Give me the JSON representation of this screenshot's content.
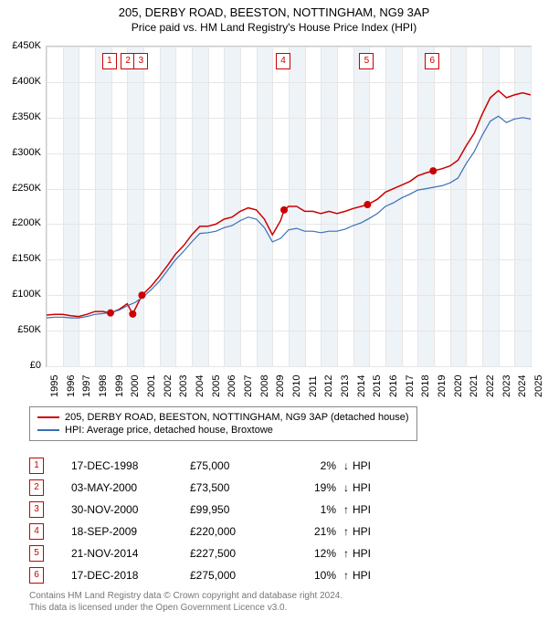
{
  "title": "205, DERBY ROAD, BEESTON, NOTTINGHAM, NG9 3AP",
  "subtitle": "Price paid vs. HM Land Registry's House Price Index (HPI)",
  "chart": {
    "type": "line",
    "x_axis": {
      "years": [
        1995,
        1996,
        1997,
        1998,
        1999,
        2000,
        2001,
        2002,
        2003,
        2004,
        2005,
        2006,
        2007,
        2008,
        2009,
        2010,
        2011,
        2012,
        2013,
        2014,
        2015,
        2016,
        2017,
        2018,
        2019,
        2020,
        2021,
        2022,
        2023,
        2024,
        2025
      ],
      "xlim": [
        1995,
        2025
      ]
    },
    "y_axis": {
      "ticks": [
        0,
        50000,
        100000,
        150000,
        200000,
        250000,
        300000,
        350000,
        400000,
        450000
      ],
      "tick_labels": [
        "£0",
        "£50K",
        "£100K",
        "£150K",
        "£200K",
        "£250K",
        "£300K",
        "£350K",
        "£400K",
        "£450K"
      ],
      "ylim": [
        0,
        450000
      ]
    },
    "grid_color": "#e6e6e6",
    "band_color": "#eef3f8",
    "border_color": "#c8c8c8",
    "background_color": "#ffffff",
    "series": [
      {
        "name": "205, DERBY ROAD, BEESTON, NOTTINGHAM, NG9 3AP (detached house)",
        "color": "#cc0000",
        "line_width": 1.5,
        "data": [
          [
            1995,
            72000
          ],
          [
            1995.5,
            73000
          ],
          [
            1996,
            73000
          ],
          [
            1996.5,
            71000
          ],
          [
            1997,
            70000
          ],
          [
            1997.5,
            73000
          ],
          [
            1998,
            77000
          ],
          [
            1998.5,
            77000
          ],
          [
            1998.96,
            75000
          ],
          [
            1999.5,
            80000
          ],
          [
            2000,
            88000
          ],
          [
            2000.34,
            73500
          ],
          [
            2000.91,
            99950
          ],
          [
            2001.5,
            113000
          ],
          [
            2002,
            127000
          ],
          [
            2002.5,
            142000
          ],
          [
            2003,
            158000
          ],
          [
            2003.5,
            170000
          ],
          [
            2004,
            185000
          ],
          [
            2004.5,
            197000
          ],
          [
            2005,
            197000
          ],
          [
            2005.5,
            200000
          ],
          [
            2006,
            207000
          ],
          [
            2006.5,
            210000
          ],
          [
            2007,
            218000
          ],
          [
            2007.5,
            223000
          ],
          [
            2008,
            220000
          ],
          [
            2008.5,
            207000
          ],
          [
            2009,
            185000
          ],
          [
            2009.5,
            205000
          ],
          [
            2009.72,
            220000
          ],
          [
            2010,
            225000
          ],
          [
            2010.5,
            225000
          ],
          [
            2011,
            218000
          ],
          [
            2011.5,
            218000
          ],
          [
            2012,
            215000
          ],
          [
            2012.5,
            218000
          ],
          [
            2013,
            215000
          ],
          [
            2013.5,
            218000
          ],
          [
            2014,
            222000
          ],
          [
            2014.5,
            225000
          ],
          [
            2014.89,
            227500
          ],
          [
            2015.5,
            235000
          ],
          [
            2016,
            245000
          ],
          [
            2016.5,
            250000
          ],
          [
            2017,
            255000
          ],
          [
            2017.5,
            260000
          ],
          [
            2018,
            268000
          ],
          [
            2018.5,
            272000
          ],
          [
            2018.96,
            275000
          ],
          [
            2019.5,
            278000
          ],
          [
            2020,
            282000
          ],
          [
            2020.5,
            290000
          ],
          [
            2021,
            310000
          ],
          [
            2021.5,
            328000
          ],
          [
            2022,
            355000
          ],
          [
            2022.5,
            378000
          ],
          [
            2023,
            388000
          ],
          [
            2023.5,
            378000
          ],
          [
            2024,
            382000
          ],
          [
            2024.5,
            385000
          ],
          [
            2025,
            382000
          ]
        ]
      },
      {
        "name": "HPI: Average price, detached house, Broxtowe",
        "color": "#3a6fb7",
        "line_width": 1.2,
        "data": [
          [
            1995,
            68000
          ],
          [
            1995.5,
            69000
          ],
          [
            1996,
            69000
          ],
          [
            1996.5,
            68000
          ],
          [
            1997,
            68000
          ],
          [
            1997.5,
            70000
          ],
          [
            1998,
            73000
          ],
          [
            1998.5,
            74000
          ],
          [
            1999,
            76000
          ],
          [
            1999.5,
            79000
          ],
          [
            2000,
            85000
          ],
          [
            2000.5,
            90000
          ],
          [
            2001,
            98000
          ],
          [
            2001.5,
            108000
          ],
          [
            2002,
            120000
          ],
          [
            2002.5,
            135000
          ],
          [
            2003,
            150000
          ],
          [
            2003.5,
            162000
          ],
          [
            2004,
            175000
          ],
          [
            2004.5,
            187000
          ],
          [
            2005,
            188000
          ],
          [
            2005.5,
            190000
          ],
          [
            2006,
            195000
          ],
          [
            2006.5,
            198000
          ],
          [
            2007,
            205000
          ],
          [
            2007.5,
            210000
          ],
          [
            2008,
            207000
          ],
          [
            2008.5,
            195000
          ],
          [
            2009,
            175000
          ],
          [
            2009.5,
            180000
          ],
          [
            2010,
            192000
          ],
          [
            2010.5,
            194000
          ],
          [
            2011,
            190000
          ],
          [
            2011.5,
            190000
          ],
          [
            2012,
            188000
          ],
          [
            2012.5,
            190000
          ],
          [
            2013,
            190000
          ],
          [
            2013.5,
            193000
          ],
          [
            2014,
            198000
          ],
          [
            2014.5,
            202000
          ],
          [
            2015,
            208000
          ],
          [
            2015.5,
            215000
          ],
          [
            2016,
            225000
          ],
          [
            2016.5,
            230000
          ],
          [
            2017,
            237000
          ],
          [
            2017.5,
            242000
          ],
          [
            2018,
            248000
          ],
          [
            2018.5,
            250000
          ],
          [
            2019,
            252000
          ],
          [
            2019.5,
            254000
          ],
          [
            2020,
            258000
          ],
          [
            2020.5,
            265000
          ],
          [
            2021,
            285000
          ],
          [
            2021.5,
            302000
          ],
          [
            2022,
            325000
          ],
          [
            2022.5,
            345000
          ],
          [
            2023,
            352000
          ],
          [
            2023.5,
            343000
          ],
          [
            2024,
            348000
          ],
          [
            2024.5,
            350000
          ],
          [
            2025,
            348000
          ]
        ]
      }
    ],
    "sale_points": {
      "color": "#cc0000",
      "radius": 4,
      "items": [
        {
          "n": "1",
          "x": 1998.96,
          "y": 75000
        },
        {
          "n": "2",
          "x": 2000.34,
          "y": 73500
        },
        {
          "n": "3",
          "x": 2000.91,
          "y": 99950
        },
        {
          "n": "4",
          "x": 2009.72,
          "y": 220000
        },
        {
          "n": "5",
          "x": 2014.89,
          "y": 227500
        },
        {
          "n": "6",
          "x": 2018.96,
          "y": 275000
        }
      ]
    },
    "marker_boxes": [
      {
        "n": "1",
        "x": 1998.96
      },
      {
        "n": "2",
        "x": 2000.1
      },
      {
        "n": "3",
        "x": 2000.91
      },
      {
        "n": "4",
        "x": 2009.72
      },
      {
        "n": "5",
        "x": 2014.89
      },
      {
        "n": "6",
        "x": 2018.96
      }
    ]
  },
  "legend": {
    "items": [
      {
        "color": "#cc0000",
        "label": "205, DERBY ROAD, BEESTON, NOTTINGHAM, NG9 3AP (detached house)"
      },
      {
        "color": "#3a6fb7",
        "label": "HPI: Average price, detached house, Broxtowe"
      }
    ]
  },
  "sales": [
    {
      "n": "1",
      "date": "17-DEC-1998",
      "price": "£75,000",
      "diff": "2%",
      "dir": "↓",
      "vs": "HPI"
    },
    {
      "n": "2",
      "date": "03-MAY-2000",
      "price": "£73,500",
      "diff": "19%",
      "dir": "↓",
      "vs": "HPI"
    },
    {
      "n": "3",
      "date": "30-NOV-2000",
      "price": "£99,950",
      "diff": "1%",
      "dir": "↑",
      "vs": "HPI"
    },
    {
      "n": "4",
      "date": "18-SEP-2009",
      "price": "£220,000",
      "diff": "21%",
      "dir": "↑",
      "vs": "HPI"
    },
    {
      "n": "5",
      "date": "21-NOV-2014",
      "price": "£227,500",
      "diff": "12%",
      "dir": "↑",
      "vs": "HPI"
    },
    {
      "n": "6",
      "date": "17-DEC-2018",
      "price": "£275,000",
      "diff": "10%",
      "dir": "↑",
      "vs": "HPI"
    }
  ],
  "footer": {
    "line1": "Contains HM Land Registry data © Crown copyright and database right 2024.",
    "line2": "This data is licensed under the Open Government Licence v3.0."
  }
}
